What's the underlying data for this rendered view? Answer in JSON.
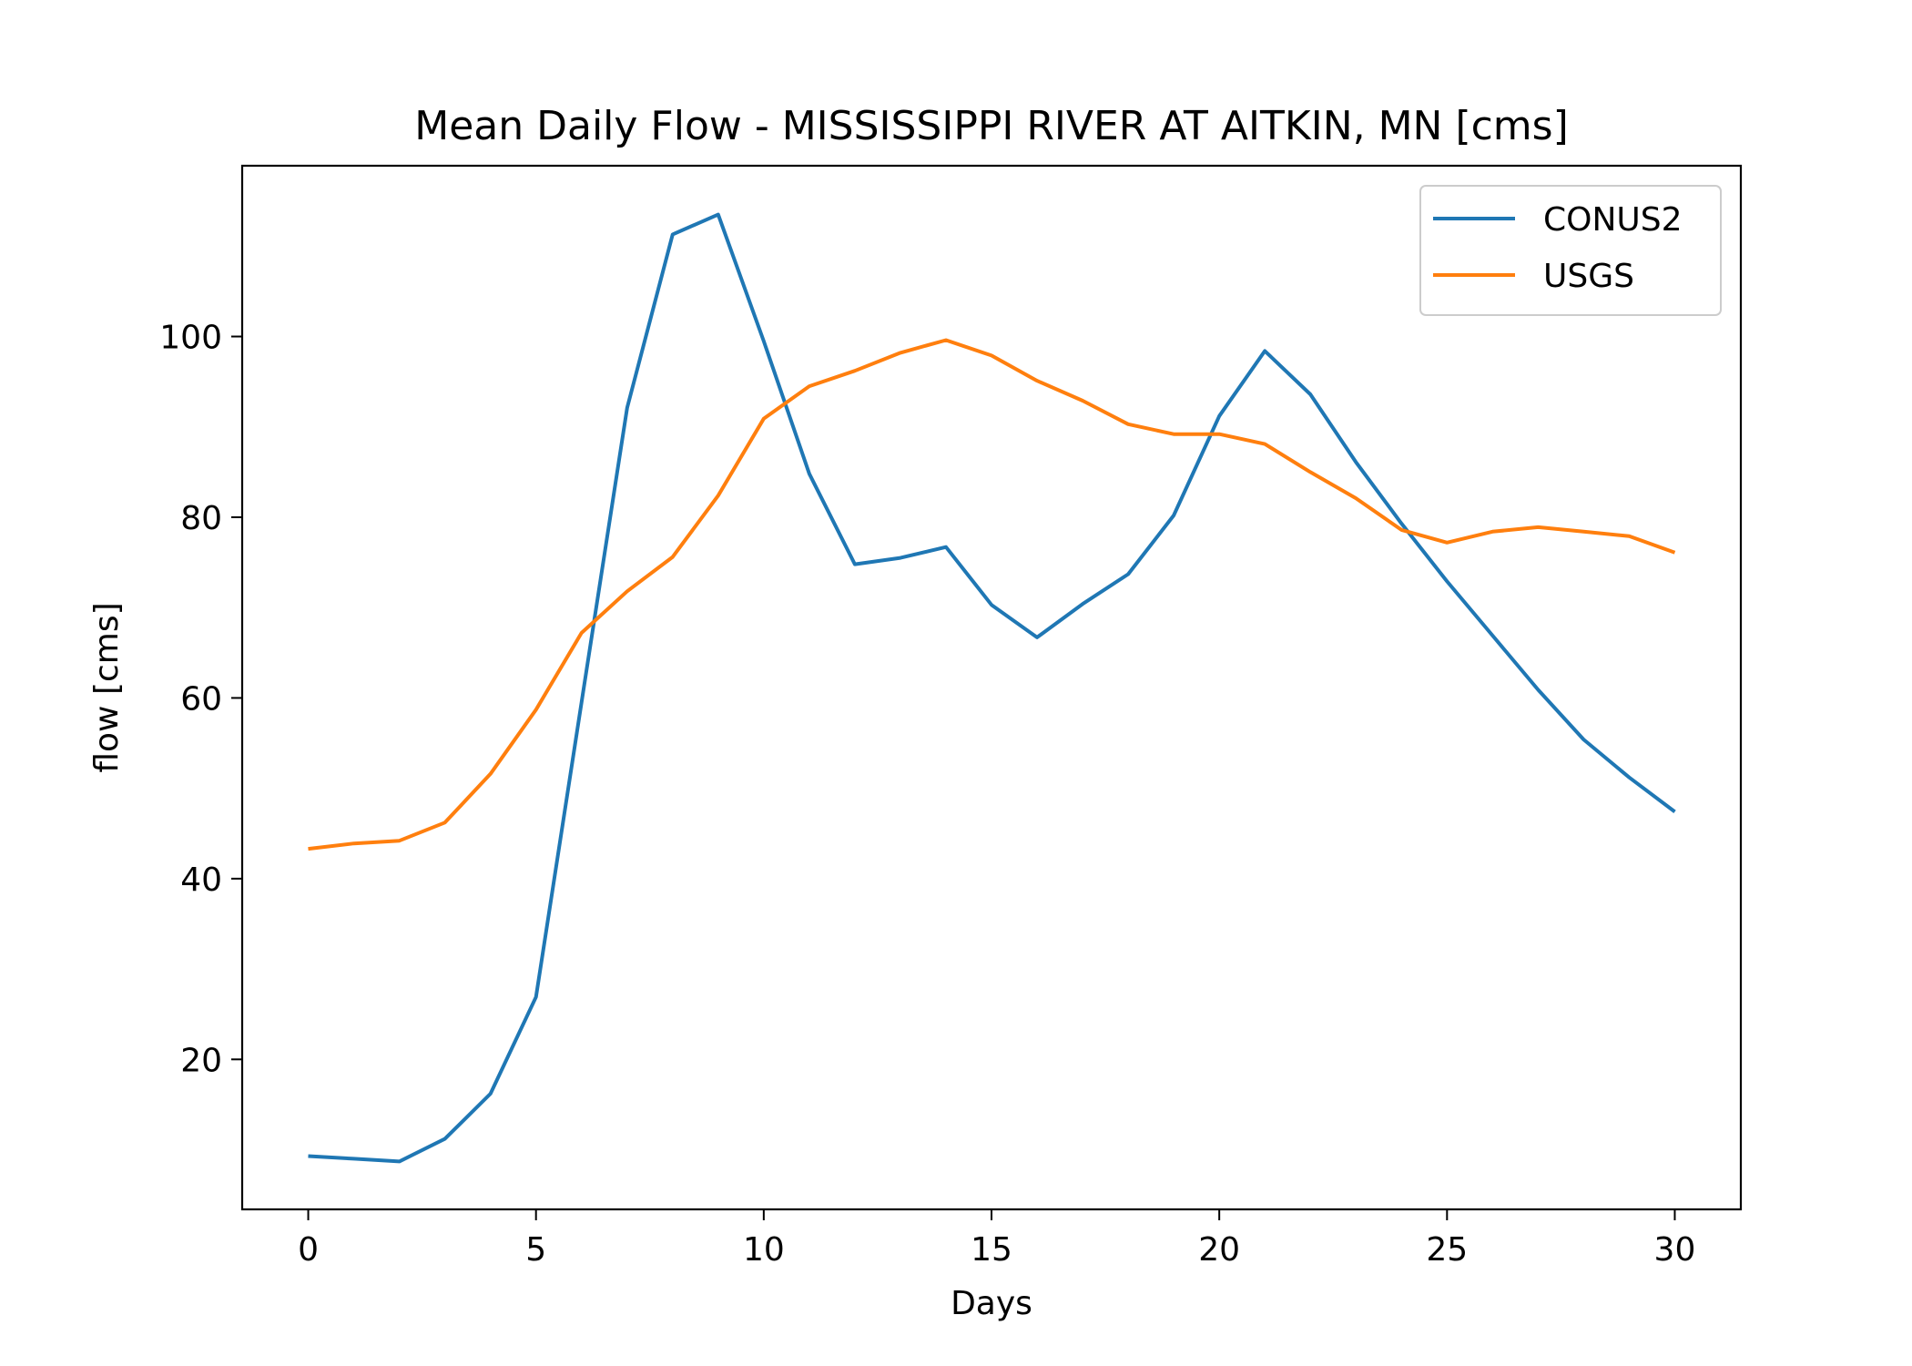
{
  "chart_data": {
    "type": "line",
    "title": "Mean Daily Flow - MISSISSIPPI RIVER AT AITKIN, MN [cms]",
    "xlabel": "Days",
    "ylabel": "flow [cms]",
    "xlim": [
      -1.45,
      31.45
    ],
    "ylim": [
      3.4,
      118.9
    ],
    "xticks": [
      0,
      5,
      10,
      15,
      20,
      25,
      30
    ],
    "yticks": [
      20,
      40,
      60,
      80,
      100
    ],
    "grid": false,
    "legend_position": "top-right",
    "x": [
      0,
      1,
      2,
      3,
      4,
      5,
      6,
      7,
      8,
      9,
      10,
      11,
      12,
      13,
      14,
      15,
      16,
      17,
      18,
      19,
      20,
      21,
      22,
      23,
      24,
      25,
      26,
      27,
      28,
      29,
      30
    ],
    "series": [
      {
        "name": "CONUS2",
        "color": "#1f77b4",
        "values": [
          9.3,
          9.0,
          8.7,
          11.2,
          16.2,
          26.9,
          59.5,
          92.1,
          111.3,
          113.5,
          99.5,
          84.8,
          74.8,
          75.5,
          76.7,
          70.3,
          66.7,
          70.4,
          73.7,
          80.2,
          91.2,
          98.4,
          93.6,
          86.1,
          79.3,
          72.9,
          66.9,
          60.9,
          55.4,
          51.2,
          47.4
        ]
      },
      {
        "name": "USGS",
        "color": "#ff7f0e",
        "values": [
          43.3,
          43.9,
          44.2,
          46.2,
          51.6,
          58.7,
          67.2,
          71.8,
          75.6,
          82.4,
          90.9,
          94.5,
          96.2,
          98.2,
          99.6,
          97.9,
          95.1,
          92.9,
          90.3,
          89.2,
          89.2,
          88.1,
          85.0,
          82.1,
          78.6,
          77.2,
          78.4,
          78.9,
          78.4,
          77.9,
          76.1
        ]
      }
    ]
  }
}
